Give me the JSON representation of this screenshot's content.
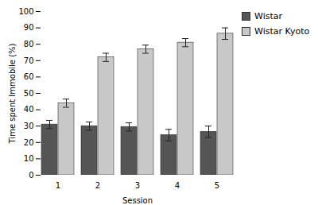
{
  "chart_data": {
    "type": "bar",
    "xlabel": "Session",
    "ylabel": "Time spent Immobile (%)",
    "categories": [
      "1",
      "2",
      "3",
      "4",
      "5"
    ],
    "series": [
      {
        "name": "Wistar",
        "color": "#555555",
        "values": [
          31.0,
          30.0,
          29.5,
          24.5,
          26.5
        ],
        "errors": [
          2.5,
          2.5,
          2.5,
          3.5,
          3.5
        ]
      },
      {
        "name": "Wistar Kyoto",
        "color": "#c8c8c8",
        "values": [
          44.0,
          72.0,
          77.0,
          81.0,
          86.5
        ],
        "errors": [
          2.5,
          2.5,
          2.5,
          2.5,
          3.5
        ]
      }
    ],
    "ylim": [
      0,
      100
    ],
    "yticks": [
      0,
      10,
      20,
      30,
      40,
      50,
      60,
      70,
      80,
      90,
      100
    ],
    "grid": false,
    "legend": "right"
  }
}
